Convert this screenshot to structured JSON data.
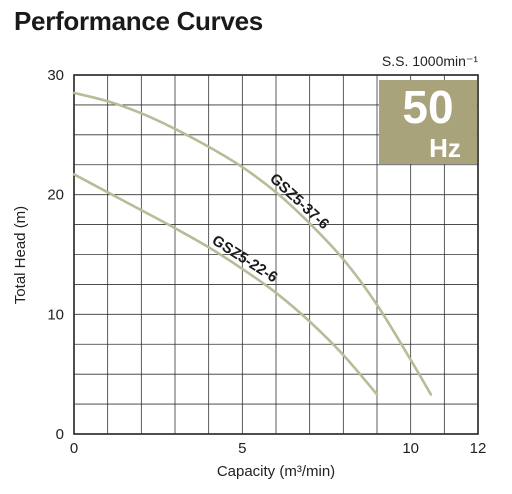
{
  "title": "Performance Curves",
  "chart_data": {
    "type": "line",
    "xlabel": "Capacity (m³/min)",
    "ylabel": "Total Head (m)",
    "xlim": [
      0,
      12
    ],
    "ylim": [
      0,
      30
    ],
    "xticks": [
      0,
      5,
      10,
      12
    ],
    "yticks": [
      0,
      10,
      20,
      30
    ],
    "grid": true,
    "speed_label": "S.S. 1000min⁻¹",
    "frequency_badge": {
      "value": "50",
      "unit": "Hz",
      "color": "#a8a37a"
    },
    "curve_color": "#b9bc98",
    "series": [
      {
        "name": "GSZ5-37-6",
        "x": [
          0,
          1,
          2,
          3,
          4,
          5,
          6,
          7,
          8,
          9,
          10,
          10.6
        ],
        "y": [
          28.5,
          27.8,
          26.8,
          25.5,
          24.0,
          22.3,
          20.2,
          17.6,
          14.6,
          10.8,
          6.2,
          3.3
        ]
      },
      {
        "name": "GSZ5-22-6",
        "x": [
          0,
          1,
          2,
          3,
          4,
          5,
          6,
          7,
          8,
          9
        ],
        "y": [
          21.7,
          20.2,
          18.7,
          17.2,
          15.6,
          13.8,
          11.8,
          9.4,
          6.6,
          3.3
        ]
      }
    ]
  }
}
